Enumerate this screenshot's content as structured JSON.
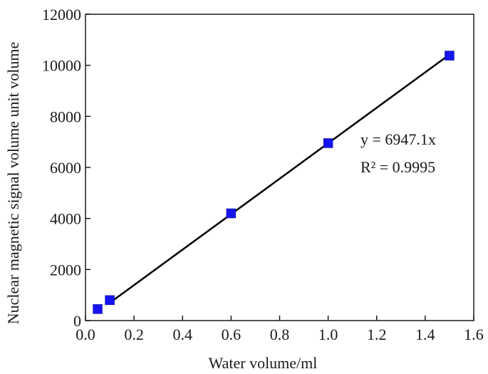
{
  "chart_data": {
    "type": "scatter",
    "xlabel": "Water volume/ml",
    "ylabel": "Nuclear magnetic signal volume  unit volume",
    "xlim": [
      0,
      1.6
    ],
    "ylim": [
      0,
      12000
    ],
    "x_ticks": [
      "0.0",
      "0.2",
      "0.4",
      "0.6",
      "0.8",
      "1.0",
      "1.2",
      "1.4",
      "1.6"
    ],
    "y_ticks": [
      "0",
      "2000",
      "4000",
      "6000",
      "8000",
      "10000",
      "12000"
    ],
    "x_tick_values": [
      0,
      0.2,
      0.4,
      0.6,
      0.8,
      1.0,
      1.2,
      1.4,
      1.6
    ],
    "y_tick_values": [
      0,
      2000,
      4000,
      6000,
      8000,
      10000,
      12000
    ],
    "series": [
      {
        "marker": "square",
        "color": "#1414f0",
        "x": [
          0.05,
          0.1,
          0.6,
          1.0,
          1.5
        ],
        "y": [
          450,
          800,
          4200,
          6950,
          10380
        ]
      }
    ],
    "fit": {
      "slope": 6947.1,
      "x_range": [
        0.1,
        1.5
      ],
      "color": "#000000",
      "equation": "y = 6947.1x",
      "r_squared": "R² = 0.9995"
    },
    "grid": false,
    "legend": "none"
  }
}
